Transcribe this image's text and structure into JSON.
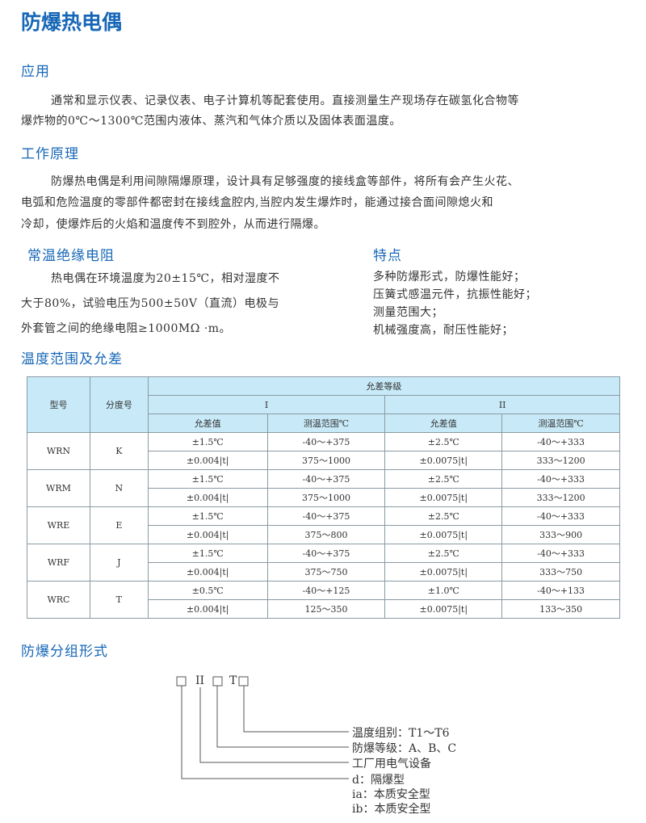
{
  "title": "防爆热电偶",
  "application": {
    "heading": "应用",
    "lines": [
      "通常和显示仪表、记录仪表、电子计算机等配套使用。直接测量生产现场存在碳氢化合物等",
      "爆炸物的0℃～1300℃范围内液体、蒸汽和气体介质以及固体表面温度。"
    ]
  },
  "principle": {
    "heading": "工作原理",
    "lines": [
      "防爆热电偶是利用间隙隔爆原理，设计具有足够强度的接线盒等部件，将所有会产生火花、",
      "电弧和危险温度的零部件都密封在接线盒腔内,当腔内发生爆炸时，能通过接合面间隙熄火和",
      "冷却，使爆炸后的火焰和温度传不到腔外，从而进行隔爆。"
    ]
  },
  "insulation": {
    "heading": "常温绝缘电阻",
    "lines": [
      "热电偶在环境温度为20±15℃，相对湿度不",
      "大于80%，试验电压为500±50V（直流）电极与",
      "外套管之间的绝缘电阻≥1000MΩ ·m。"
    ]
  },
  "features": {
    "heading": "特点",
    "lines": [
      "多种防爆形式，防爆性能好；",
      "压簧式感温元件，抗振性能好；",
      "测量范围大；",
      "机械强度高，耐压性能好；"
    ]
  },
  "table": {
    "heading": "温度范围及允差",
    "headers": {
      "model": "型号",
      "graduation": "分度号",
      "tolerance_class": "允差等级",
      "class1": "I",
      "class2": "II",
      "tol": "允差值",
      "range": "测温范围℃"
    },
    "groups": [
      {
        "model": "WRN",
        "grad": "K",
        "rows": [
          [
            "±1.5℃",
            "-40～+375",
            "±2.5℃",
            "-40～+333"
          ],
          [
            "±0.004|t|",
            "375～1000",
            "±0.0075|t|",
            "333～1200"
          ]
        ]
      },
      {
        "model": "WRM",
        "grad": "N",
        "rows": [
          [
            "±1.5℃",
            "-40～+375",
            "±2.5℃",
            "-40～+333"
          ],
          [
            "±0.004|t|",
            "375～1000",
            "±0.0075|t|",
            "333～1200"
          ]
        ]
      },
      {
        "model": "WRE",
        "grad": "E",
        "rows": [
          [
            "±1.5℃",
            "-40～+375",
            "±2.5℃",
            "-40～+333"
          ],
          [
            "±0.004|t|",
            "375～800",
            "±0.0075|t|",
            "333～900"
          ]
        ]
      },
      {
        "model": "WRF",
        "grad": "J",
        "rows": [
          [
            "±1.5℃",
            "-40～+375",
            "±2.5℃",
            "-40～+333"
          ],
          [
            "±0.004|t|",
            "375～750",
            "±0.0075|t|",
            "333～750"
          ]
        ]
      },
      {
        "model": "WRC",
        "grad": "T",
        "rows": [
          [
            "±0.5℃",
            "-40～+125",
            "±1.0℃",
            "-40～+133"
          ],
          [
            "±0.004|t|",
            "125～350",
            "±0.0075|t|",
            "133～350"
          ]
        ]
      }
    ]
  },
  "grouping": {
    "heading": "防爆分组形式",
    "code": {
      "ii": "II",
      "t": "T"
    },
    "labels": [
      "温度组别：T1～T6",
      "防爆等级：A、B、C",
      "工厂用电气设备",
      "d：隔爆型",
      "ia：本质安全型",
      "ib：本质安全型"
    ]
  }
}
